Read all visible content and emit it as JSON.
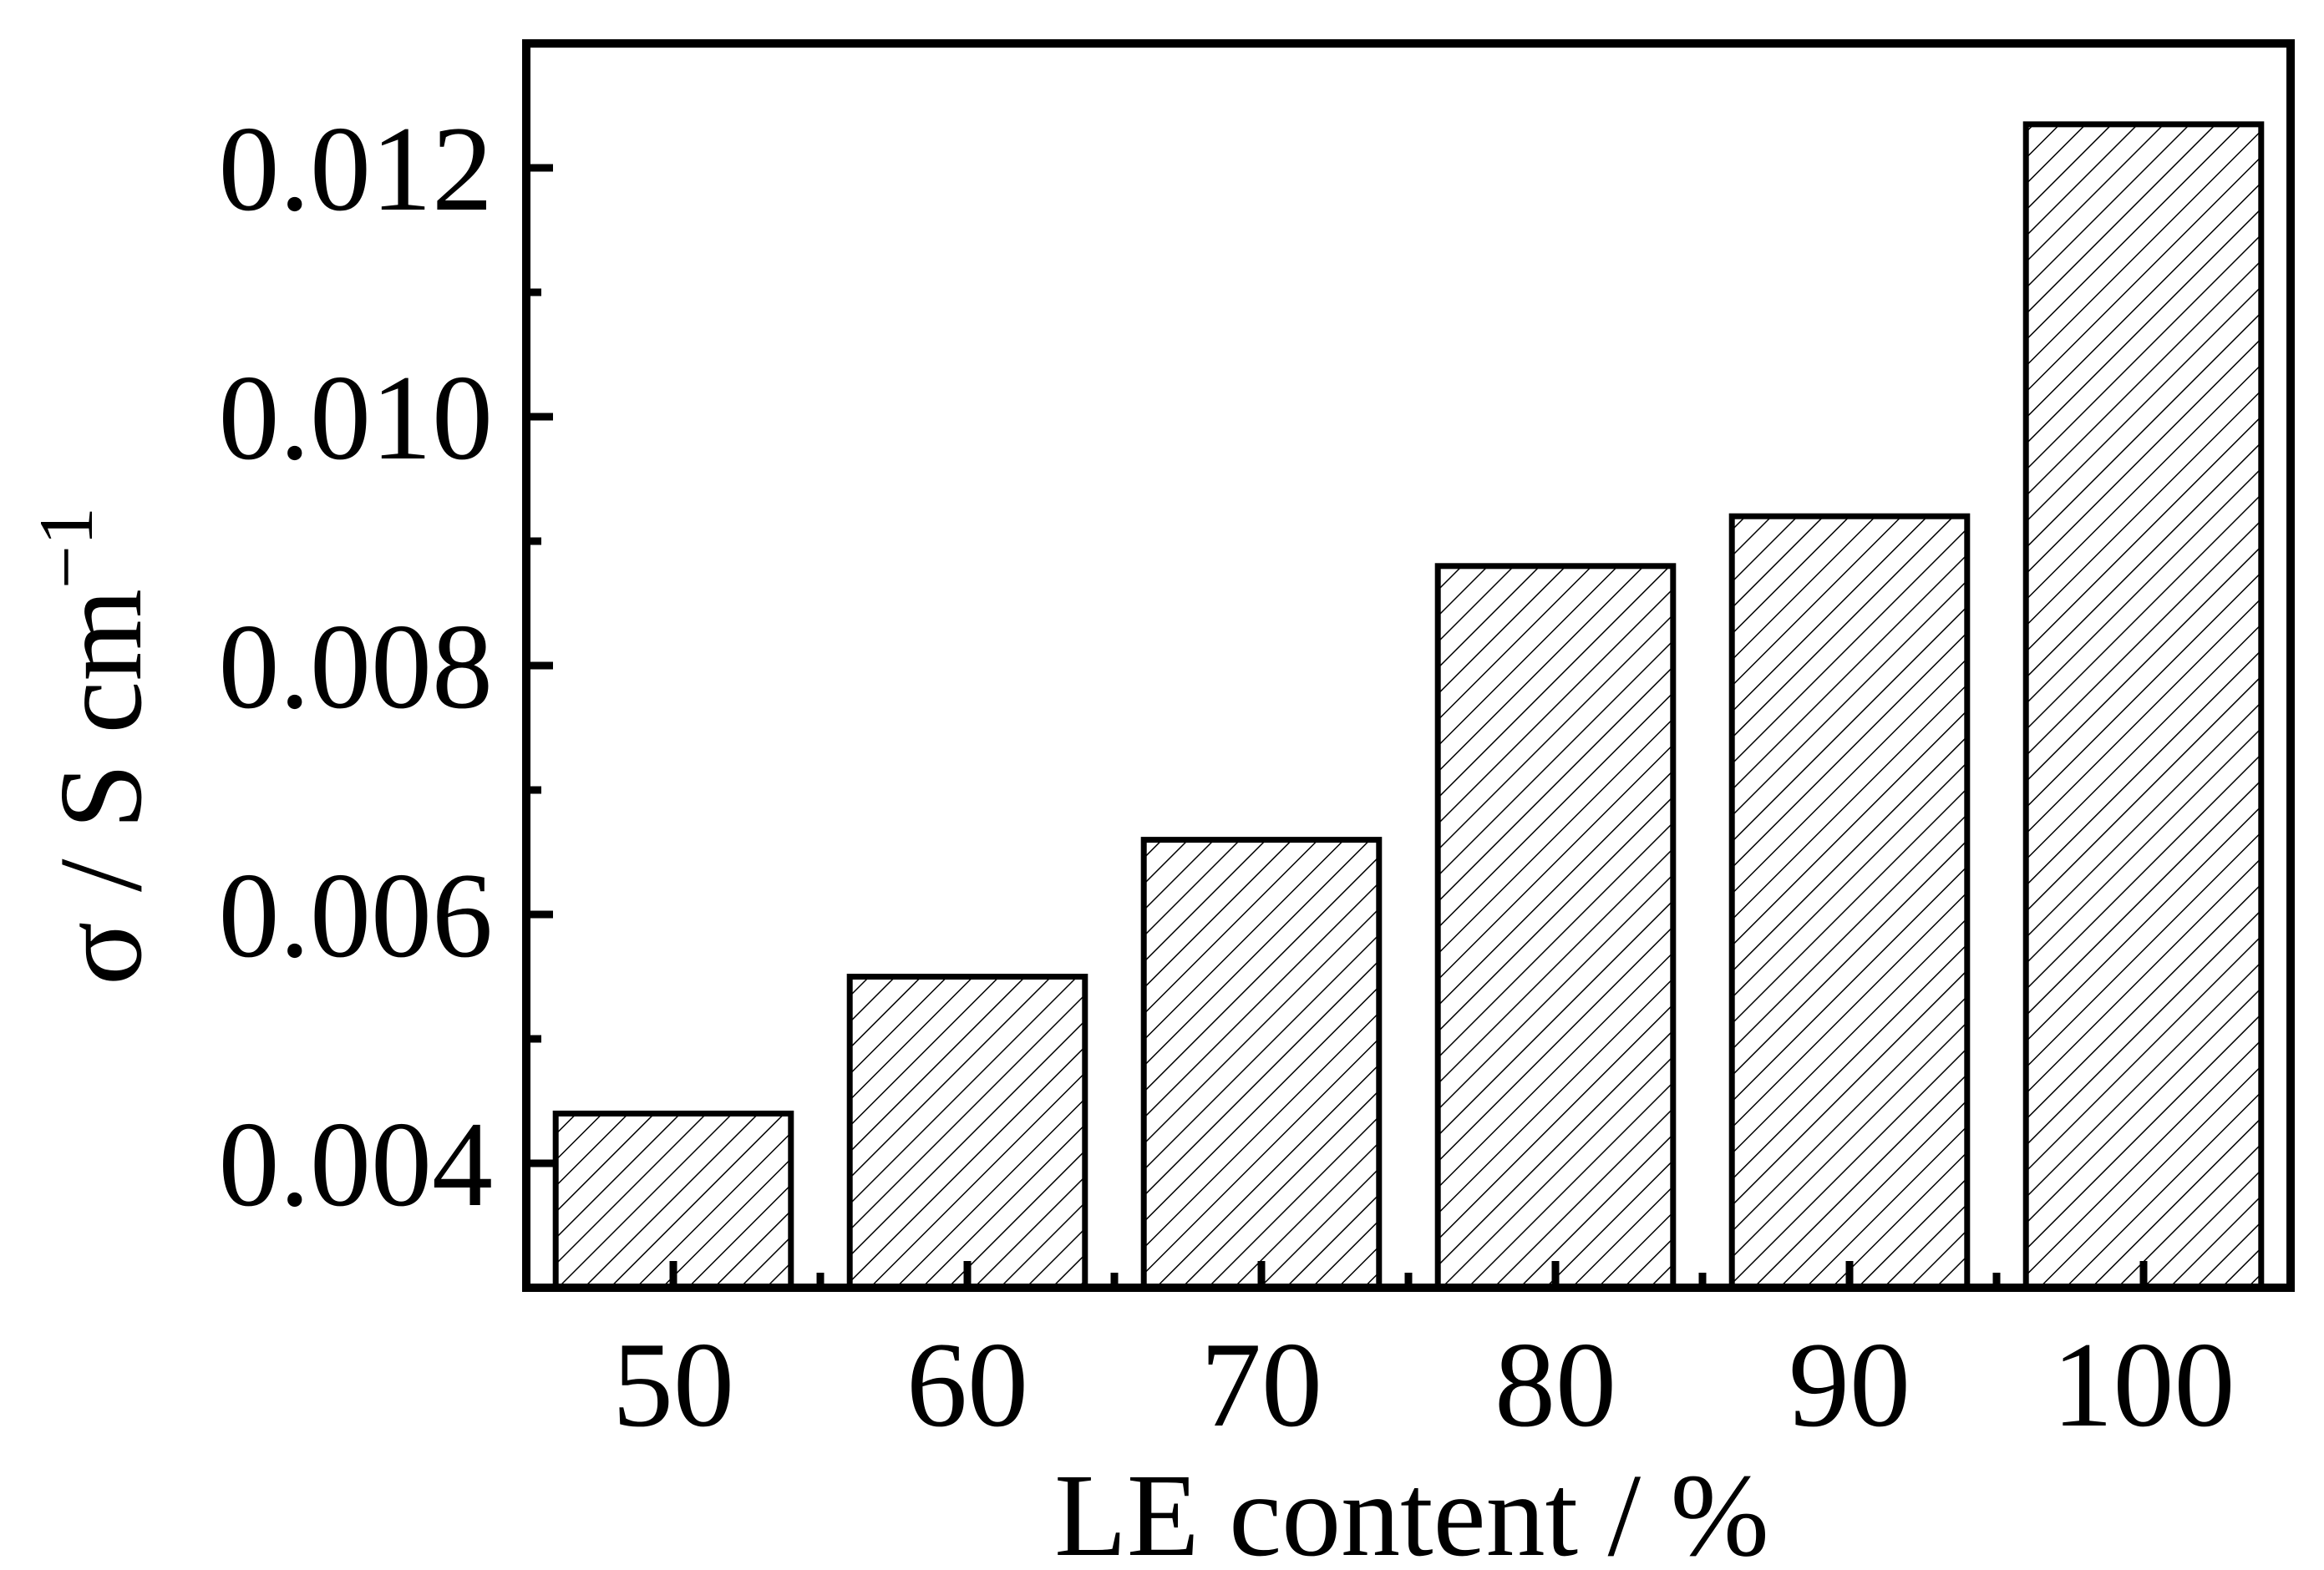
{
  "chart_data": {
    "type": "bar",
    "categories": [
      "50",
      "60",
      "70",
      "80",
      "90",
      "100"
    ],
    "values": [
      0.0044,
      0.0055,
      0.0066,
      0.0088,
      0.0092,
      0.01235
    ],
    "xlabel": "LE content / %",
    "ylabel": "σ / S cm",
    "ylabel_superscript": "−1",
    "ylim": [
      0.003,
      0.013
    ],
    "yticks": [
      "0.004",
      "0.006",
      "0.008",
      "0.010",
      "0.012"
    ],
    "ytick_values": [
      0.004,
      0.006,
      0.008,
      0.01,
      0.012
    ],
    "yminor_values": [
      0.005,
      0.007,
      0.009,
      0.011
    ],
    "bar_fill": "hatched",
    "grid": false,
    "legend": "none",
    "colors": {
      "bar_edge": "#000000",
      "hatch": "#000000",
      "background": "#ffffff"
    }
  }
}
